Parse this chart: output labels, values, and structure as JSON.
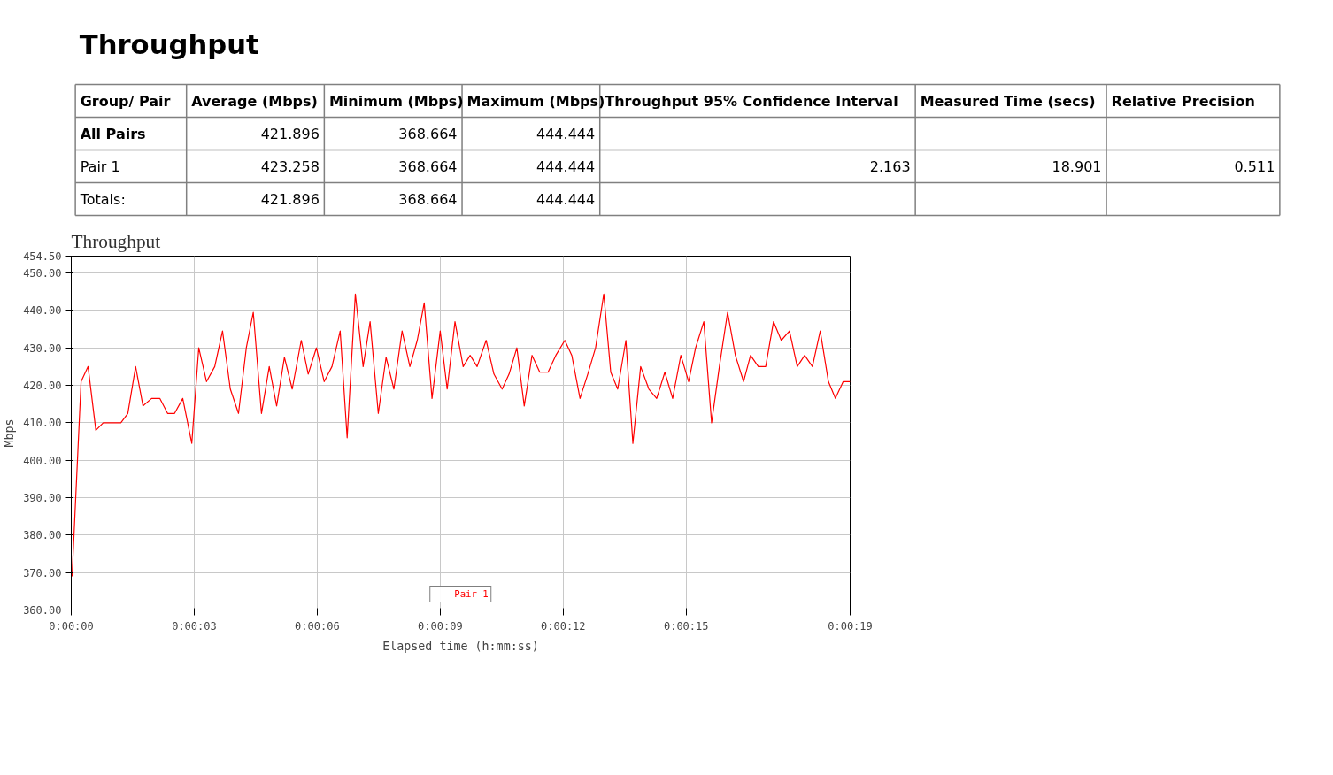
{
  "chart_data": [
    {
      "type": "other",
      "title": "Throughput",
      "categories": [
        "Group/ Pair",
        "Average (Mbps)",
        "Minimum (Mbps)",
        "Maximum (Mbps)",
        "Throughput 95% Confidence Interval",
        "Measured Time (secs)",
        "Relative Precision"
      ],
      "y_categories": [
        "All Pairs",
        "Pair 1",
        "Totals:"
      ],
      "cell_labels": [
        [
          null,
          "421.896",
          "368.664",
          "444.444",
          null,
          null,
          null
        ],
        [
          null,
          "423.258",
          "368.664",
          "444.444",
          "2.163",
          "18.901",
          "0.511"
        ],
        [
          null,
          "421.896",
          "368.664",
          "444.444",
          null,
          null,
          null
        ]
      ]
    },
    {
      "type": "line",
      "title": "Throughput",
      "xlabel": "Elapsed time (h:mm:ss)",
      "ylabel": "Mbps",
      "xlim": [
        0,
        19
      ],
      "ylim": [
        360,
        454.5
      ],
      "xticks": [
        {
          "value": 0,
          "label": "0:00:00"
        },
        {
          "value": 3,
          "label": "0:00:03"
        },
        {
          "value": 6,
          "label": "0:00:06"
        },
        {
          "value": 9,
          "label": "0:00:09"
        },
        {
          "value": 12,
          "label": "0:00:12"
        },
        {
          "value": 15,
          "label": "0:00:15"
        },
        {
          "value": 19,
          "label": "0:00:19"
        }
      ],
      "yticks": [
        {
          "value": 360,
          "label": "360.00"
        },
        {
          "value": 370,
          "label": "370.00"
        },
        {
          "value": 380,
          "label": "380.00"
        },
        {
          "value": 390,
          "label": "390.00"
        },
        {
          "value": 400,
          "label": "400.00"
        },
        {
          "value": 410,
          "label": "410.00"
        },
        {
          "value": 420,
          "label": "420.00"
        },
        {
          "value": 430,
          "label": "430.00"
        },
        {
          "value": 440,
          "label": "440.00"
        },
        {
          "value": 450,
          "label": "450.00"
        },
        {
          "value": 454.5,
          "label": "454.50"
        }
      ],
      "grid": true,
      "legend": "bottom",
      "marker": "none",
      "line_style": "solid",
      "series": [
        {
          "name": "Pair 1",
          "color": "#ff0000",
          "x": [
            0.02,
            0.24,
            0.41,
            0.6,
            0.78,
            1.21,
            1.38,
            1.57,
            1.75,
            1.96,
            2.16,
            2.35,
            2.52,
            2.72,
            2.94,
            3.11,
            3.3,
            3.5,
            3.69,
            3.88,
            4.08,
            4.27,
            4.44,
            4.64,
            4.83,
            5.01,
            5.2,
            5.39,
            5.61,
            5.78,
            5.98,
            6.17,
            6.36,
            6.56,
            6.73,
            6.93,
            7.12,
            7.29,
            7.49,
            7.68,
            7.87,
            8.07,
            8.26,
            8.44,
            8.61,
            8.8,
            9.0,
            9.17,
            9.36,
            9.56,
            9.73,
            9.9,
            10.12,
            10.31,
            10.51,
            10.68,
            10.87,
            11.05,
            11.24,
            11.43,
            11.63,
            11.82,
            12.04,
            12.21,
            12.41,
            12.6,
            12.79,
            12.99,
            13.16,
            13.33,
            13.53,
            13.7,
            13.89,
            14.09,
            14.28,
            14.48,
            14.67,
            14.87,
            15.06,
            15.23,
            15.43,
            15.62,
            15.81,
            16.01,
            16.2,
            16.4,
            16.57,
            16.76,
            16.94,
            17.13,
            17.32,
            17.52,
            17.71,
            17.89,
            18.08,
            18.27,
            18.47,
            18.64,
            18.83,
            19.0
          ],
          "values": [
            369,
            421,
            425,
            408,
            410,
            410,
            412.5,
            425,
            414.5,
            416.5,
            416.5,
            412.5,
            412.5,
            416.5,
            404.5,
            430,
            421,
            425,
            434.5,
            419,
            412.5,
            430,
            439.5,
            412.5,
            425,
            414.5,
            427.5,
            419,
            432,
            423,
            430,
            421,
            425,
            434.5,
            406,
            444.4,
            425,
            437,
            412.5,
            427.5,
            419,
            434.5,
            425,
            432,
            442,
            416.5,
            434.5,
            419,
            437,
            425,
            428,
            425,
            432,
            423,
            419,
            423,
            430,
            414.5,
            428,
            423.5,
            423.5,
            428,
            432,
            428,
            416.5,
            423,
            430,
            444.4,
            423.5,
            419,
            432,
            404.5,
            425,
            419,
            416.5,
            423.5,
            416.5,
            428,
            421,
            430,
            437,
            410,
            425,
            439.5,
            428,
            421,
            428,
            425,
            425,
            437,
            432,
            434.5,
            425,
            428,
            425,
            434.5,
            421,
            416.5,
            421,
            421
          ]
        }
      ]
    }
  ]
}
